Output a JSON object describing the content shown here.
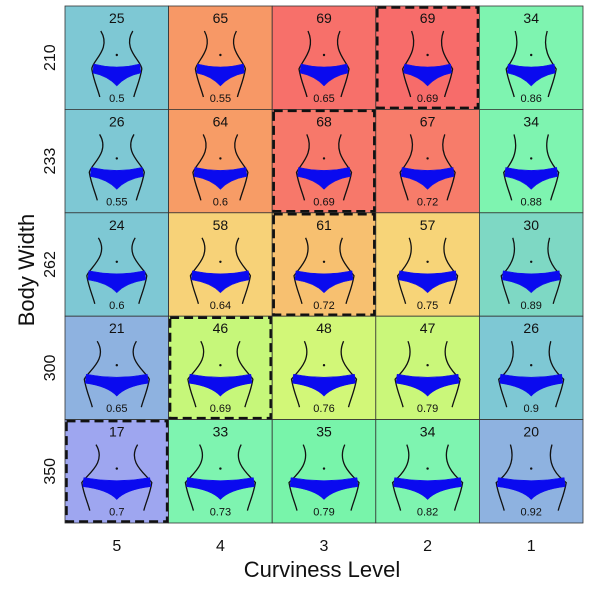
{
  "chart_data": {
    "type": "heatmap",
    "title": "",
    "xlabel": "Curviness Level",
    "ylabel": "Body Width",
    "x_categories": [
      "5",
      "4",
      "3",
      "2",
      "1"
    ],
    "y_categories": [
      "210",
      "233",
      "262",
      "300",
      "350"
    ],
    "cell_icon": "waist-bikini-silhouette-icon",
    "values": [
      [
        25,
        65,
        69,
        69,
        34
      ],
      [
        26,
        64,
        68,
        67,
        34
      ],
      [
        24,
        58,
        61,
        57,
        30
      ],
      [
        21,
        46,
        48,
        47,
        26
      ],
      [
        17,
        33,
        35,
        34,
        20
      ]
    ],
    "ratios": [
      [
        "0.5",
        "0.55",
        "0.65",
        "0.69",
        "0.86"
      ],
      [
        "0.55",
        "0.6",
        "0.69",
        "0.72",
        "0.88"
      ],
      [
        "0.6",
        "0.64",
        "0.72",
        "0.75",
        "0.89"
      ],
      [
        "0.65",
        "0.69",
        "0.76",
        "0.79",
        "0.9"
      ],
      [
        "0.7",
        "0.73",
        "0.79",
        "0.82",
        "0.92"
      ]
    ],
    "dashed_cells": [
      [
        0,
        3
      ],
      [
        1,
        2
      ],
      [
        2,
        2
      ],
      [
        3,
        1
      ],
      [
        4,
        0
      ]
    ],
    "colors": [
      [
        "#7ec8d4",
        "#f79866",
        "#f7706a",
        "#f76c6a",
        "#7ef4b0"
      ],
      [
        "#7ec8d4",
        "#f79c66",
        "#f7786a",
        "#f77c6a",
        "#7ef4b0"
      ],
      [
        "#7ec8d4",
        "#f7d278",
        "#f7c070",
        "#f7d478",
        "#7ed8c4"
      ],
      [
        "#8eb2e0",
        "#c6f77a",
        "#d2f778",
        "#caf77a",
        "#7ec8d4"
      ],
      [
        "#9ea6f0",
        "#7ef4b0",
        "#78f4aa",
        "#7ef4b0",
        "#8eb2e0"
      ]
    ],
    "icon_color": "#0a0aef"
  }
}
